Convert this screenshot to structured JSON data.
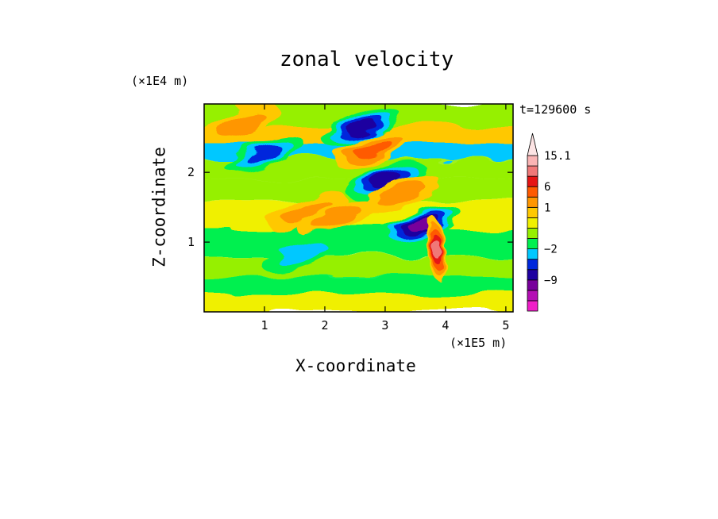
{
  "chart_data": {
    "type": "heatmap",
    "title": "zonal velocity",
    "xlabel": "X-coordinate",
    "ylabel": "Z-coordinate",
    "x_unit_label": "(×1E5 m)",
    "y_unit_label": "(×1E4 m)",
    "time_label": "t=129600 s",
    "xlim": [
      0,
      5.12
    ],
    "ylim": [
      0,
      2.98
    ],
    "x_ticks": [
      {
        "value": 1,
        "label": "1"
      },
      {
        "value": 2,
        "label": "2"
      },
      {
        "value": 3,
        "label": "3"
      },
      {
        "value": 4,
        "label": "4"
      },
      {
        "value": 5,
        "label": "5"
      }
    ],
    "y_ticks": [
      {
        "value": 1,
        "label": "1"
      },
      {
        "value": 2,
        "label": "2"
      }
    ],
    "colorbar": {
      "levels": [
        {
          "value": -15,
          "color": "#f01ec8"
        },
        {
          "value": -12,
          "color": "#b40fb4"
        },
        {
          "value": -9,
          "color": "#78009b"
        },
        {
          "value": -6,
          "color": "#1e00a0"
        },
        {
          "value": -4,
          "color": "#0028dc"
        },
        {
          "value": -2,
          "color": "#00c8ff"
        },
        {
          "value": -1,
          "color": "#00f050"
        },
        {
          "value": 0,
          "color": "#96f000"
        },
        {
          "value": 0.5,
          "color": "#f0f000"
        },
        {
          "value": 1,
          "color": "#ffc800"
        },
        {
          "value": 3,
          "color": "#ff9600"
        },
        {
          "value": 6,
          "color": "#ff5a00"
        },
        {
          "value": 9,
          "color": "#e61414"
        },
        {
          "value": 12,
          "color": "#f07878"
        },
        {
          "value": 15.1,
          "color": "#fab4b4"
        }
      ],
      "labels": [
        {
          "value": 15.1,
          "label": "15.1"
        },
        {
          "value": 6,
          "label": "6"
        },
        {
          "value": 1,
          "label": "1"
        },
        {
          "value": -2,
          "label": "−2"
        },
        {
          "value": -9,
          "label": "−9"
        }
      ]
    },
    "features": [
      {
        "x": 0.6,
        "z": 2.7,
        "value": 4
      },
      {
        "x": 1.0,
        "z": 2.25,
        "value": -5
      },
      {
        "x": 2.6,
        "z": 2.65,
        "value": -6
      },
      {
        "x": 2.8,
        "z": 2.35,
        "value": 6
      },
      {
        "x": 3.0,
        "z": 1.9,
        "value": -8
      },
      {
        "x": 3.25,
        "z": 1.7,
        "value": 5
      },
      {
        "x": 3.6,
        "z": 1.25,
        "value": -10
      },
      {
        "x": 1.7,
        "z": 1.45,
        "value": 5
      },
      {
        "x": 2.2,
        "z": 1.35,
        "value": 3
      },
      {
        "x": 1.6,
        "z": 0.85,
        "value": -2
      },
      {
        "x": 3.85,
        "z": 0.9,
        "value": 15
      }
    ]
  }
}
